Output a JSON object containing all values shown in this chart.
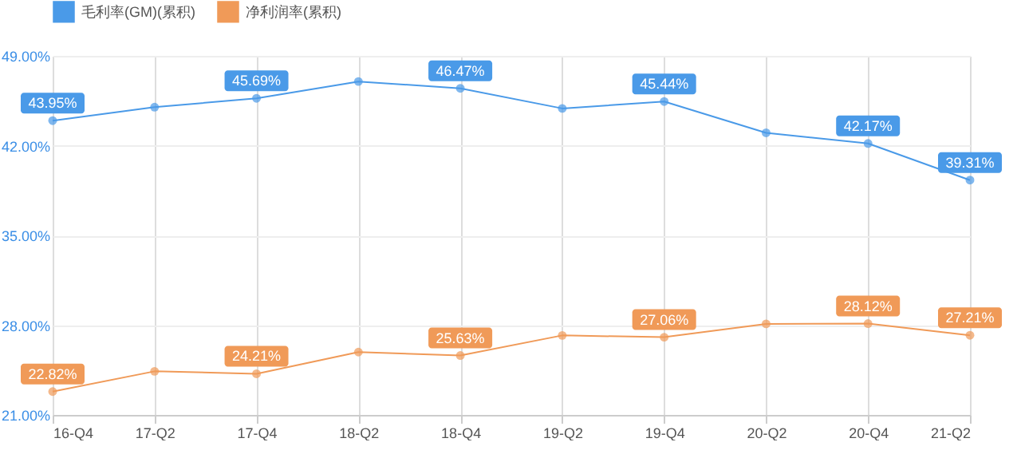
{
  "chart_data": {
    "type": "line",
    "categories": [
      "16-Q4",
      "17-Q2",
      "17-Q4",
      "18-Q2",
      "18-Q4",
      "19-Q2",
      "19-Q4",
      "20-Q2",
      "20-Q4",
      "21-Q2"
    ],
    "series": [
      {
        "name": "毛利率(GM)(累积)",
        "color": "#4a9ae8",
        "values": [
          43.95,
          45.0,
          45.69,
          47.0,
          46.47,
          44.9,
          45.44,
          43.0,
          42.17,
          39.31
        ],
        "value_labels": [
          "43.95%",
          null,
          "45.69%",
          null,
          "46.47%",
          null,
          "45.44%",
          null,
          "42.17%",
          "39.31%"
        ]
      },
      {
        "name": "净利润率(累积)",
        "color": "#f09a58",
        "values": [
          22.82,
          24.4,
          24.21,
          25.9,
          25.63,
          27.2,
          27.06,
          28.1,
          28.12,
          27.21
        ],
        "value_labels": [
          "22.82%",
          null,
          "24.21%",
          null,
          "25.63%",
          null,
          "27.06%",
          null,
          "28.12%",
          "27.21%"
        ]
      }
    ],
    "ylim": [
      21,
      49
    ],
    "yticks": [
      {
        "value": 21,
        "label": "21.00%"
      },
      {
        "value": 28,
        "label": "28.00%"
      },
      {
        "value": 35,
        "label": "35.00%"
      },
      {
        "value": 42,
        "label": "42.00%"
      },
      {
        "value": 49,
        "label": "49.00%"
      }
    ],
    "grid": true,
    "legend": "top",
    "marker": "circle",
    "line_style": "solid"
  }
}
